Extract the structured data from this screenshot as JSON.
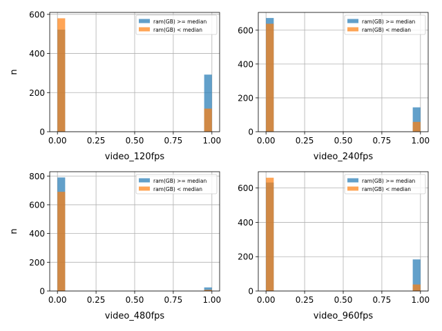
{
  "figure": {
    "background": "#ffffff"
  },
  "chart_data": [
    {
      "type": "bar",
      "subtype": "overlaid-histogram",
      "xlabel": "video_120fps",
      "ylabel": "n",
      "xlim": [
        -0.05,
        1.05
      ],
      "ylim": [
        0,
        610
      ],
      "xticks": [
        0.0,
        0.25,
        0.5,
        0.75,
        1.0
      ],
      "xtick_labels": [
        "0.00",
        "0.25",
        "0.50",
        "0.75",
        "1.00"
      ],
      "yticks": [
        0,
        200,
        400,
        600
      ],
      "grid": true,
      "legend_position": "upper right",
      "bin_width": 0.05,
      "series": [
        {
          "name": "ram(GB) >= median",
          "color": "#1f77b4",
          "opacity": 0.7,
          "bins": [
            {
              "x0": 0.0,
              "x1": 0.05,
              "count": 522
            },
            {
              "x0": 0.95,
              "x1": 1.0,
              "count": 292
            }
          ]
        },
        {
          "name": "ram(GB) < median",
          "color": "#ff7f0e",
          "opacity": 0.7,
          "bins": [
            {
              "x0": 0.0,
              "x1": 0.05,
              "count": 580
            },
            {
              "x0": 0.95,
              "x1": 1.0,
              "count": 118
            }
          ]
        }
      ]
    },
    {
      "type": "bar",
      "subtype": "overlaid-histogram",
      "xlabel": "video_240fps",
      "ylabel": "",
      "xlim": [
        -0.05,
        1.05
      ],
      "ylim": [
        0,
        705
      ],
      "xticks": [
        0.0,
        0.25,
        0.5,
        0.75,
        1.0
      ],
      "xtick_labels": [
        "0.00",
        "0.25",
        "0.50",
        "0.75",
        "1.00"
      ],
      "yticks": [
        0,
        200,
        400,
        600
      ],
      "grid": true,
      "legend_position": "upper right",
      "bin_width": 0.05,
      "series": [
        {
          "name": "ram(GB) >= median",
          "color": "#1f77b4",
          "opacity": 0.7,
          "bins": [
            {
              "x0": 0.0,
              "x1": 0.05,
              "count": 672
            },
            {
              "x0": 0.95,
              "x1": 1.0,
              "count": 144
            }
          ]
        },
        {
          "name": "ram(GB) < median",
          "color": "#ff7f0e",
          "opacity": 0.7,
          "bins": [
            {
              "x0": 0.0,
              "x1": 0.05,
              "count": 638
            },
            {
              "x0": 0.95,
              "x1": 1.0,
              "count": 58
            }
          ]
        }
      ]
    },
    {
      "type": "bar",
      "subtype": "overlaid-histogram",
      "xlabel": "video_480fps",
      "ylabel": "n",
      "xlim": [
        -0.05,
        1.05
      ],
      "ylim": [
        0,
        830
      ],
      "xticks": [
        0.0,
        0.25,
        0.5,
        0.75,
        1.0
      ],
      "xtick_labels": [
        "0.00",
        "0.25",
        "0.50",
        "0.75",
        "1.00"
      ],
      "yticks": [
        0,
        200,
        400,
        600,
        800
      ],
      "grid": true,
      "legend_position": "upper right",
      "bin_width": 0.05,
      "series": [
        {
          "name": "ram(GB) >= median",
          "color": "#1f77b4",
          "opacity": 0.7,
          "bins": [
            {
              "x0": 0.0,
              "x1": 0.05,
              "count": 790
            },
            {
              "x0": 0.95,
              "x1": 1.0,
              "count": 25
            }
          ]
        },
        {
          "name": "ram(GB) < median",
          "color": "#ff7f0e",
          "opacity": 0.7,
          "bins": [
            {
              "x0": 0.0,
              "x1": 0.05,
              "count": 690
            },
            {
              "x0": 0.95,
              "x1": 1.0,
              "count": 8
            }
          ]
        }
      ]
    },
    {
      "type": "bar",
      "subtype": "overlaid-histogram",
      "xlabel": "video_960fps",
      "ylabel": "",
      "xlim": [
        -0.05,
        1.05
      ],
      "ylim": [
        0,
        695
      ],
      "xticks": [
        0.0,
        0.25,
        0.5,
        0.75,
        1.0
      ],
      "xtick_labels": [
        "0.00",
        "0.25",
        "0.50",
        "0.75",
        "1.00"
      ],
      "yticks": [
        0,
        200,
        400,
        600
      ],
      "grid": true,
      "legend_position": "upper right",
      "bin_width": 0.05,
      "series": [
        {
          "name": "ram(GB) >= median",
          "color": "#1f77b4",
          "opacity": 0.7,
          "bins": [
            {
              "x0": 0.0,
              "x1": 0.05,
              "count": 632
            },
            {
              "x0": 0.95,
              "x1": 1.0,
              "count": 184
            }
          ]
        },
        {
          "name": "ram(GB) < median",
          "color": "#ff7f0e",
          "opacity": 0.7,
          "bins": [
            {
              "x0": 0.0,
              "x1": 0.05,
              "count": 660
            },
            {
              "x0": 0.95,
              "x1": 1.0,
              "count": 38
            }
          ]
        }
      ]
    }
  ]
}
